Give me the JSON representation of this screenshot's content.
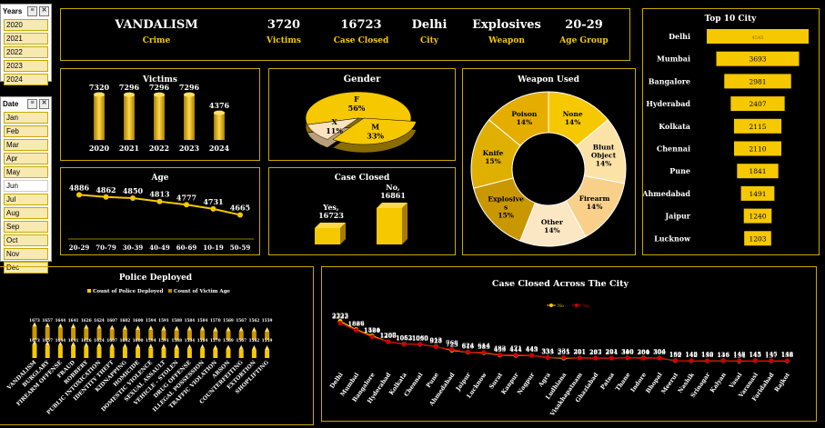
{
  "slicers": {
    "years": {
      "header": "Years",
      "items": [
        "2020",
        "2021",
        "2022",
        "2023",
        "2024"
      ]
    },
    "months": {
      "header": "Date",
      "items": [
        "Jan",
        "Feb",
        "Mar",
        "Apr",
        "May",
        "Jun",
        "Jul",
        "Aug",
        "Sep",
        "Oct",
        "Nov",
        "Dec"
      ]
    }
  },
  "kpis": {
    "crime": {
      "value": "VANDALISM",
      "label": "Crime"
    },
    "victims": {
      "value": "3720",
      "label": "Victims"
    },
    "case_closed": {
      "value": "16723",
      "label": "Case Closed"
    },
    "city": {
      "value": "Delhi",
      "label": "City"
    },
    "weapon": {
      "value": "Explosives",
      "label": "Weapon"
    },
    "age_group": {
      "value": "20-29",
      "label": "Age Group"
    }
  },
  "colors": {
    "accent": "#f5c800",
    "gold_dark": "#b38900",
    "panel_border": "#c9a800",
    "red": "#cc0000"
  },
  "chart_data": [
    {
      "id": "victims",
      "type": "bar",
      "title": "Victims",
      "categories": [
        "2020",
        "2021",
        "2022",
        "2023",
        "2024"
      ],
      "values": [
        7320,
        7296,
        7296,
        7296,
        4376
      ]
    },
    {
      "id": "gender",
      "type": "pie",
      "title": "Gender",
      "labels": [
        "F",
        "M",
        "X"
      ],
      "values": [
        56,
        33,
        11
      ],
      "percent_labels": [
        "56%",
        "33%",
        "11%"
      ]
    },
    {
      "id": "weapon",
      "type": "pie",
      "title": "Weapon Used",
      "labels": [
        "None",
        "Blunt Object",
        "Firearm",
        "Other",
        "Explosives",
        "Knife",
        "Poison"
      ],
      "values": [
        14,
        14,
        14,
        14,
        15,
        15,
        14
      ],
      "percent_labels": [
        "14%",
        "14%",
        "14%",
        "14%",
        "15%",
        "15%",
        "14%"
      ],
      "colors": [
        "#f5c800",
        "#fbe3a8",
        "#f8d08a",
        "#fbe7c4",
        "#c99700",
        "#dfb000",
        "#e5ad00"
      ]
    },
    {
      "id": "top_city",
      "type": "bar",
      "title": "Top 10 City",
      "categories": [
        "Delhi",
        "Mumbai",
        "Bangalore",
        "Hyderabad",
        "Kolkata",
        "Chennai",
        "Pune",
        "Ahmedabad",
        "Jaipur",
        "Lucknow"
      ],
      "values": [
        4545,
        3693,
        2981,
        2407,
        2115,
        2110,
        1841,
        1491,
        1240,
        1203
      ]
    },
    {
      "id": "age",
      "type": "line",
      "title": "Age",
      "categories": [
        "20-29",
        "70-79",
        "30-39",
        "40-49",
        "60-69",
        "10-19",
        "50-59"
      ],
      "values": [
        4886,
        4862,
        4850,
        4813,
        4777,
        4731,
        4665
      ]
    },
    {
      "id": "case_closed",
      "type": "bar",
      "title": "Case Closed",
      "categories": [
        "Yes",
        "No"
      ],
      "values": [
        16723,
        16861
      ],
      "data_labels": [
        "Yes,\n16723",
        "No,\n16861"
      ]
    },
    {
      "id": "police",
      "type": "bar",
      "title": "Police Deployed",
      "legend": [
        "Count of Police Deployed",
        "Count of Victim Age"
      ],
      "categories": [
        "VANDALISM",
        "BURGLARY",
        "FIREARM OFFENSE",
        "FRAUD",
        "ROBBERY",
        "PUBLIC INTOXICATION",
        "IDENTITY THEFT",
        "KIDNAPPING",
        "HOMICIDE",
        "DOMESTIC VIOLENCE",
        "SEXUAL ASSAULT",
        "VEHICLE - STOLEN",
        "DRUG OFFENSE",
        "ILLEGAL POSSESSION",
        "TRAFFIC VIOLATION",
        "ARSON",
        "COUNTERFEITING",
        "EXTORTION",
        "SHOPLIFTING"
      ],
      "series": [
        {
          "name": "Count of Police Deployed",
          "values": [
            1673,
            1657,
            1644,
            1641,
            1626,
            1624,
            1607,
            1602,
            1600,
            1594,
            1591,
            1588,
            1584,
            1584,
            1570,
            1569,
            1567,
            1562,
            1559
          ]
        },
        {
          "name": "Count of Victim Age",
          "values": [
            1673,
            1657,
            1644,
            1641,
            1626,
            1624,
            1607,
            1602,
            1600,
            1594,
            1591,
            1588,
            1584,
            1584,
            1570,
            1569,
            1567,
            1562,
            1559
          ]
        }
      ]
    },
    {
      "id": "city_cases",
      "type": "line",
      "title": "Case Closed Across The City",
      "legend": [
        "No",
        "Yes"
      ],
      "categories": [
        "Delhi",
        "Mumbai",
        "Bangalore",
        "Hyderabad",
        "Kolkata",
        "Chennai",
        "Pune",
        "Ahmedabad",
        "Jaipur",
        "Lucknow",
        "Surat",
        "Kanpur",
        "Nagpur",
        "Agra",
        "Ludhiana",
        "Visakhapatnam",
        "Ghaziabad",
        "Patna",
        "Thane",
        "Indore",
        "Bhopal",
        "Meerut",
        "Nashik",
        "Srinagar",
        "Kalyan",
        "Vasai",
        "Varanasi",
        "Faridabad",
        "Rajkot"
      ],
      "series": [
        {
          "name": "Yes",
          "values": [
            2222,
            1827,
            1460,
            1207,
            1052,
            1060,
            913,
            768,
            624,
            614,
            482,
            471,
            449,
            334,
            331,
            291,
            287,
            291,
            310,
            281,
            304,
            160,
            148,
            140,
            136,
            148,
            145,
            145,
            148
          ]
        },
        {
          "name": "No",
          "values": [
            2323,
            1866,
            1521,
            1200,
            1063,
            1050,
            928,
            723,
            616,
            589,
            459,
            444,
            443,
            333,
            295,
            301,
            293,
            294,
            306,
            300,
            300,
            152,
            142,
            138,
            146,
            134,
            145,
            137,
            138
          ]
        }
      ]
    }
  ]
}
